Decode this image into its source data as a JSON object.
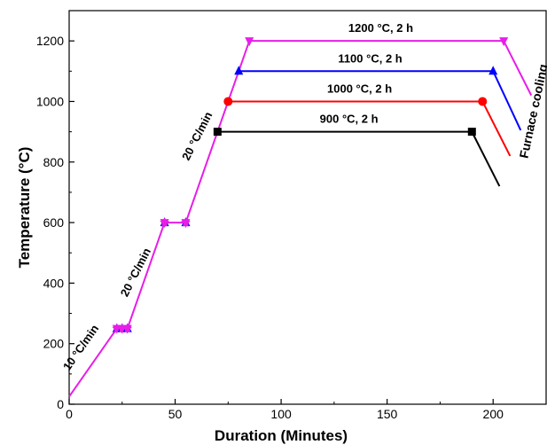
{
  "chart_data": {
    "type": "line",
    "title": "",
    "xlabel": "Duration (Minutes)",
    "ylabel": "Temperature (°C)",
    "xlim": [
      0,
      225
    ],
    "ylim": [
      0,
      1300
    ],
    "xticks": [
      0,
      50,
      100,
      150,
      200
    ],
    "yticks": [
      0,
      200,
      400,
      600,
      800,
      1000,
      1200
    ],
    "grid": false,
    "ramp": {
      "color": "#e81de8",
      "points": [
        [
          0,
          25
        ],
        [
          22.5,
          250
        ],
        [
          27.5,
          250
        ],
        [
          45,
          600
        ],
        [
          55,
          600
        ],
        [
          85,
          1200
        ]
      ],
      "markers": [
        [
          22.5,
          250
        ],
        [
          25,
          250
        ],
        [
          27.5,
          250
        ],
        [
          45,
          600
        ],
        [
          55,
          600
        ]
      ]
    },
    "series": [
      {
        "name": "900 °C, 2 h",
        "color": "#000000",
        "marker": "square",
        "hold": [
          [
            70,
            900
          ],
          [
            190,
            900
          ]
        ],
        "cool": [
          [
            190,
            900
          ],
          [
            203,
            720
          ]
        ]
      },
      {
        "name": "1000 °C, 2 h",
        "color": "#ff0000",
        "marker": "circle",
        "hold": [
          [
            75,
            1000
          ],
          [
            195,
            1000
          ]
        ],
        "cool": [
          [
            195,
            1000
          ],
          [
            208,
            820
          ]
        ]
      },
      {
        "name": "1100 °C, 2 h",
        "color": "#0000ff",
        "marker": "triangle-up",
        "hold": [
          [
            80,
            1100
          ],
          [
            200,
            1100
          ]
        ],
        "cool": [
          [
            200,
            1100
          ],
          [
            213,
            905
          ]
        ]
      },
      {
        "name": "1200 °C, 2 h",
        "color": "#e81de8",
        "marker": "triangle-down",
        "hold": [
          [
            85,
            1200
          ],
          [
            205,
            1200
          ]
        ],
        "cool": [
          [
            205,
            1200
          ],
          [
            218,
            1020
          ]
        ]
      }
    ],
    "rate_labels": [
      {
        "text": "10 °C/min",
        "x": 7,
        "y": 180,
        "angle": -55
      },
      {
        "text": "20 °C/min",
        "x": 33,
        "y": 430,
        "angle": -63
      },
      {
        "text": "20 °C/min",
        "x": 62,
        "y": 880,
        "angle": -63
      }
    ],
    "cooling_label": {
      "text": "Furnace cooling",
      "x": 221,
      "y": 965,
      "angle": -78
    }
  }
}
